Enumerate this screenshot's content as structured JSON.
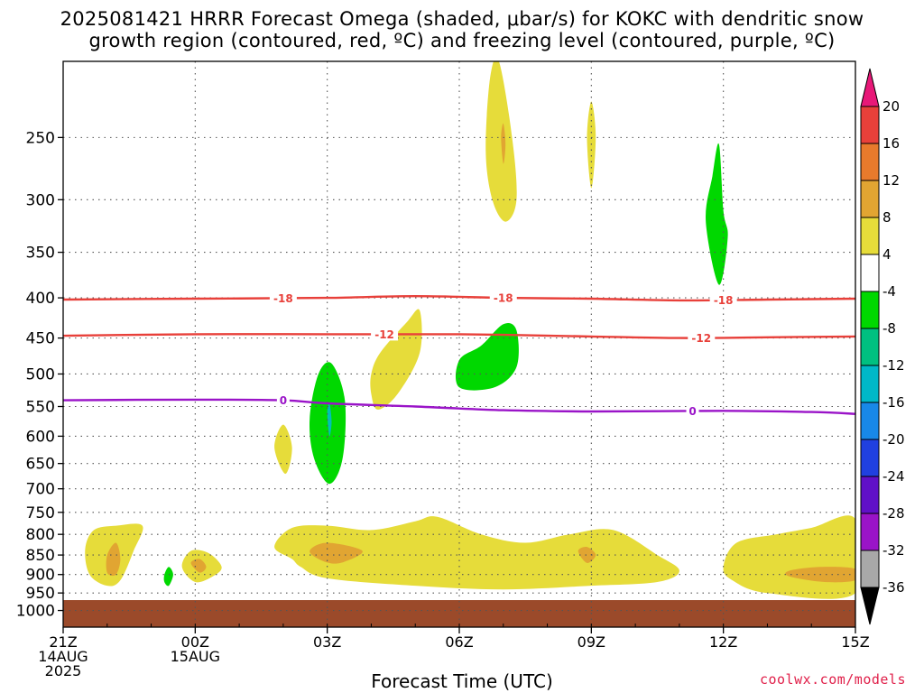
{
  "titles": {
    "line1": "2025081421 HRRR Forecast Omega (shaded, μbar/s) for KOKC with dendritic snow",
    "line2": "growth region (contoured, red, ºC) and freezing level (contoured, purple, ºC)"
  },
  "chart_data": {
    "type": "time-height cross section",
    "xlabel": "Forecast Time (UTC)",
    "xlim": [
      0,
      18
    ],
    "x_units": "hours after 2025-08-14 21Z",
    "x_ticks": [
      {
        "x": 0,
        "lines": [
          "21Z",
          "14AUG",
          "2025"
        ]
      },
      {
        "x": 3,
        "lines": [
          "00Z",
          "15AUG"
        ]
      },
      {
        "x": 6,
        "lines": [
          "03Z"
        ]
      },
      {
        "x": 9,
        "lines": [
          "06Z"
        ]
      },
      {
        "x": 12,
        "lines": [
          "09Z"
        ]
      },
      {
        "x": 15,
        "lines": [
          "12Z"
        ]
      },
      {
        "x": 18,
        "lines": [
          "15Z"
        ]
      }
    ],
    "y_scale": "log pressure, inverted",
    "ylim_hPa": [
      1050,
      200
    ],
    "y_ticks": [
      250,
      300,
      350,
      400,
      450,
      500,
      550,
      600,
      650,
      700,
      750,
      800,
      850,
      900,
      950,
      1000
    ],
    "grid": true,
    "surface_fill": {
      "pressure_top": 970,
      "color": "#9b4a2a"
    },
    "contours": [
      {
        "label": "-18",
        "color": "#e8403a",
        "points": [
          [
            0,
            402
          ],
          [
            3,
            401
          ],
          [
            6,
            400
          ],
          [
            8,
            398
          ],
          [
            10,
            400
          ],
          [
            12,
            401
          ],
          [
            14,
            403
          ],
          [
            16,
            402
          ],
          [
            18,
            401
          ]
        ],
        "label_at": [
          5,
          10,
          15
        ]
      },
      {
        "label": "-12",
        "color": "#e8403a",
        "points": [
          [
            0,
            447
          ],
          [
            3,
            445
          ],
          [
            6,
            445
          ],
          [
            9,
            445
          ],
          [
            12,
            448
          ],
          [
            14,
            450
          ],
          [
            16,
            449
          ],
          [
            18,
            448
          ]
        ],
        "label_at": [
          7.3,
          14.5
        ]
      },
      {
        "label": "0",
        "color": "#9a14c8",
        "points": [
          [
            0,
            540
          ],
          [
            3,
            539
          ],
          [
            5,
            540
          ],
          [
            6,
            545
          ],
          [
            8,
            550
          ],
          [
            10,
            556
          ],
          [
            12,
            558
          ],
          [
            15,
            557
          ],
          [
            17,
            559
          ],
          [
            18,
            562
          ]
        ],
        "label_at": [
          5,
          14.3
        ]
      }
    ],
    "omega_areas": [
      {
        "color": "#e6dc3a",
        "points": [
          [
            0.5,
            835
          ],
          [
            0.7,
            790
          ],
          [
            1.2,
            780
          ],
          [
            1.8,
            780
          ],
          [
            1.6,
            840
          ],
          [
            1.3,
            915
          ],
          [
            1.0,
            930
          ],
          [
            0.6,
            900
          ]
        ]
      },
      {
        "color": "#e1a532",
        "points": [
          [
            1.0,
            850
          ],
          [
            1.2,
            820
          ],
          [
            1.3,
            860
          ],
          [
            1.2,
            900
          ],
          [
            1.0,
            895
          ]
        ]
      },
      {
        "color": "#00d800",
        "points": [
          [
            2.3,
            900
          ],
          [
            2.4,
            880
          ],
          [
            2.5,
            900
          ],
          [
            2.4,
            930
          ],
          [
            2.3,
            920
          ]
        ]
      },
      {
        "color": "#e6dc3a",
        "points": [
          [
            2.7,
            880
          ],
          [
            2.9,
            840
          ],
          [
            3.3,
            845
          ],
          [
            3.6,
            880
          ],
          [
            3.4,
            905
          ],
          [
            3.0,
            920
          ]
        ]
      },
      {
        "color": "#e1a532",
        "points": [
          [
            2.9,
            870
          ],
          [
            3.1,
            860
          ],
          [
            3.25,
            880
          ],
          [
            3.1,
            895
          ]
        ]
      },
      {
        "color": "#e6dc3a",
        "points": [
          [
            4.8,
            830
          ],
          [
            5.2,
            785
          ],
          [
            6,
            780
          ],
          [
            7,
            790
          ],
          [
            8,
            770
          ],
          [
            8.5,
            760
          ],
          [
            9.5,
            800
          ],
          [
            10.5,
            820
          ],
          [
            11.5,
            800
          ],
          [
            12.5,
            790
          ],
          [
            13.5,
            850
          ],
          [
            14,
            890
          ],
          [
            13.5,
            920
          ],
          [
            12,
            930
          ],
          [
            10,
            940
          ],
          [
            8,
            930
          ],
          [
            6,
            910
          ],
          [
            5.4,
            880
          ],
          [
            5.2,
            860
          ]
        ]
      },
      {
        "color": "#e1a532",
        "points": [
          [
            5.6,
            840
          ],
          [
            6,
            820
          ],
          [
            6.8,
            840
          ],
          [
            6.3,
            870
          ],
          [
            5.9,
            865
          ]
        ]
      },
      {
        "color": "#e1a532",
        "points": [
          [
            11.7,
            840
          ],
          [
            11.9,
            830
          ],
          [
            12.1,
            850
          ],
          [
            11.9,
            870
          ]
        ]
      },
      {
        "color": "#e6dc3a",
        "points": [
          [
            15,
            880
          ],
          [
            15.3,
            820
          ],
          [
            16.2,
            800
          ],
          [
            17,
            785
          ],
          [
            18,
            765
          ],
          [
            18,
            950
          ],
          [
            16,
            950
          ],
          [
            15.2,
            915
          ]
        ]
      },
      {
        "color": "#e1a532",
        "points": [
          [
            16.5,
            890
          ],
          [
            17.2,
            880
          ],
          [
            18,
            885
          ],
          [
            18,
            915
          ],
          [
            17.3,
            920
          ],
          [
            16.5,
            905
          ]
        ]
      },
      {
        "color": "#e6dc3a",
        "points": [
          [
            4.8,
            620
          ],
          [
            5.0,
            580
          ],
          [
            5.2,
            620
          ],
          [
            5.05,
            670
          ]
        ]
      },
      {
        "color": "#00d800",
        "points": [
          [
            5.6,
            570
          ],
          [
            5.8,
            500
          ],
          [
            6.1,
            485
          ],
          [
            6.4,
            540
          ],
          [
            6.35,
            640
          ],
          [
            6.05,
            690
          ],
          [
            5.7,
            640
          ]
        ]
      },
      {
        "color": "#00c0b8",
        "points": [
          [
            6.0,
            560
          ],
          [
            6.05,
            545
          ],
          [
            6.1,
            575
          ],
          [
            6.05,
            600
          ]
        ]
      },
      {
        "color": "#e6dc3a",
        "points": [
          [
            7.0,
            500
          ],
          [
            7.2,
            470
          ],
          [
            7.8,
            430
          ],
          [
            8.1,
            415
          ],
          [
            8.1,
            470
          ],
          [
            7.6,
            530
          ],
          [
            7.15,
            555
          ],
          [
            7.0,
            530
          ]
        ]
      },
      {
        "color": "#00d800",
        "points": [
          [
            9.0,
            480
          ],
          [
            9.5,
            460
          ],
          [
            10.0,
            432
          ],
          [
            10.3,
            440
          ],
          [
            10.3,
            490
          ],
          [
            9.8,
            520
          ],
          [
            9.0,
            520
          ]
        ]
      },
      {
        "color": "#e6dc3a",
        "points": [
          [
            9.6,
            260
          ],
          [
            9.7,
            210
          ],
          [
            9.9,
            200
          ],
          [
            10.2,
            250
          ],
          [
            10.3,
            300
          ],
          [
            10.05,
            320
          ],
          [
            9.75,
            300
          ]
        ]
      },
      {
        "color": "#e1a532",
        "points": [
          [
            9.95,
            250
          ],
          [
            10.0,
            240
          ],
          [
            10.05,
            255
          ],
          [
            10.0,
            270
          ]
        ]
      },
      {
        "color": "#e6dc3a",
        "points": [
          [
            11.9,
            250
          ],
          [
            12.0,
            225
          ],
          [
            12.1,
            250
          ],
          [
            12.0,
            290
          ]
        ]
      },
      {
        "color": "#00d800",
        "points": [
          [
            14.6,
            320
          ],
          [
            14.75,
            280
          ],
          [
            14.9,
            255
          ],
          [
            15.0,
            310
          ],
          [
            15.1,
            335
          ],
          [
            14.9,
            385
          ]
        ]
      }
    ]
  },
  "colorbar": {
    "levels": [
      20,
      16,
      12,
      8,
      4,
      -4,
      -8,
      -12,
      -16,
      -20,
      -24,
      -28,
      -32,
      -36
    ],
    "colors": [
      "#e81878",
      "#e8403a",
      "#e87a2c",
      "#e1a532",
      "#e6dc3a",
      "#ffffff",
      "#00d800",
      "#00c080",
      "#00b8c8",
      "#1888e8",
      "#2040e0",
      "#6010c8",
      "#9a14c8",
      "#a8a8a8",
      "#000000"
    ]
  },
  "x_axis": {
    "label": "Forecast Time (UTC)"
  },
  "credit": "coolwx.com/models"
}
